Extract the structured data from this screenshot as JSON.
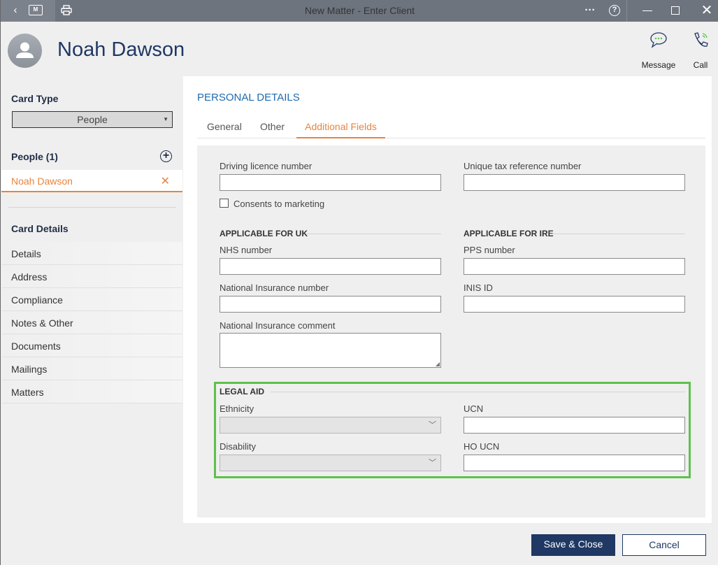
{
  "window": {
    "title": "New Matter - Enter Client",
    "back_icon": "chevron-left-icon",
    "folder_icon": "matter-folder-icon",
    "folder_letter": "M",
    "print_icon": "printer-icon",
    "more_icon": "ellipsis-icon",
    "help_icon": "help-icon",
    "min_icon": "minimize-icon",
    "max_icon": "maximize-icon",
    "close_icon": "close-icon"
  },
  "header": {
    "name": "Noah Dawson",
    "message_label": "Message",
    "call_label": "Call"
  },
  "sidebar": {
    "card_type_label": "Card Type",
    "card_type_value": "People",
    "people_label": "People (1)",
    "selected_person": "Noah Dawson",
    "card_details_label": "Card Details",
    "items": [
      {
        "label": "Details"
      },
      {
        "label": "Address"
      },
      {
        "label": "Compliance"
      },
      {
        "label": "Notes & Other"
      },
      {
        "label": "Documents"
      },
      {
        "label": "Mailings"
      },
      {
        "label": "Matters"
      }
    ]
  },
  "main": {
    "section_title": "PERSONAL DETAILS",
    "tabs": [
      {
        "label": "General"
      },
      {
        "label": "Other"
      },
      {
        "label": "Additional Fields",
        "active": true
      }
    ],
    "fields": {
      "driving_licence": "Driving licence number",
      "utr": "Unique tax reference number",
      "consents": "Consents to marketing",
      "uk_section": "APPLICABLE FOR UK",
      "ire_section": "APPLICABLE FOR IRE",
      "nhs": "NHS number",
      "pps": "PPS number",
      "ni": "National Insurance number",
      "inis": "INIS ID",
      "ni_comment": "National Insurance comment",
      "legal_aid": "LEGAL AID",
      "ethnicity": "Ethnicity",
      "ucn": "UCN",
      "disability": "Disability",
      "ho_ucn": "HO UCN"
    }
  },
  "footer": {
    "save_close": "Save & Close",
    "cancel": "Cancel"
  },
  "colors": {
    "accent": "#e8843c",
    "primary": "#1f3864",
    "highlight_border": "#5fc14b"
  }
}
